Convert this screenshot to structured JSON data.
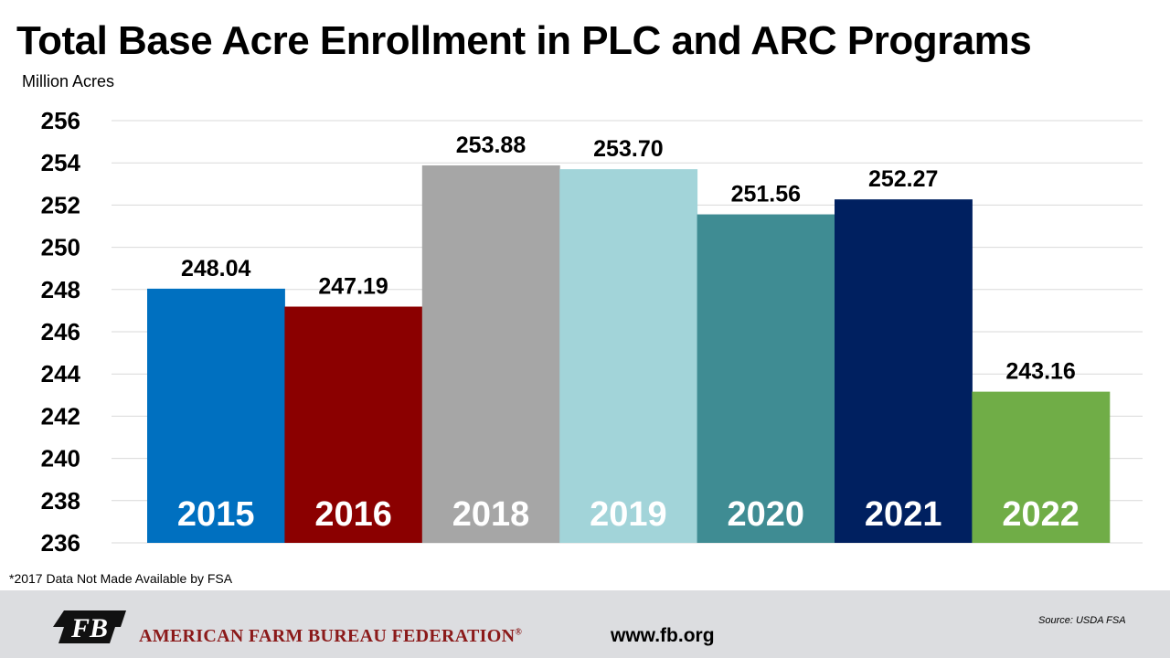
{
  "chart_data": {
    "type": "bar",
    "title": "Total Base Acre Enrollment in PLC and ARC Programs",
    "ylabel": "Million Acres",
    "xlabel": "",
    "categories": [
      "2015",
      "2016",
      "2018",
      "2019",
      "2020",
      "2021",
      "2022"
    ],
    "values": [
      248.04,
      247.19,
      253.88,
      253.7,
      251.56,
      252.27,
      243.16
    ],
    "value_labels": [
      "248.04",
      "247.19",
      "253.88",
      "253.70",
      "251.56",
      "252.27",
      "243.16"
    ],
    "colors": [
      "#0070c0",
      "#8b0000",
      "#a6a6a6",
      "#a2d4d9",
      "#3f8c93",
      "#002060",
      "#70ad47"
    ],
    "ylim": [
      236,
      256
    ],
    "yticks": [
      256,
      254,
      252,
      250,
      248,
      246,
      244,
      242,
      240,
      238,
      236
    ],
    "grid": true,
    "legend": "none"
  },
  "footnote": "*2017  Data Not Made Available by FSA",
  "footer": {
    "org_name": "AMERICAN FARM BUREAU FEDERATION",
    "org_mark": "®",
    "logo_text": "FB",
    "website": "www.fb.org",
    "source": "Source:  USDA  FSA"
  }
}
